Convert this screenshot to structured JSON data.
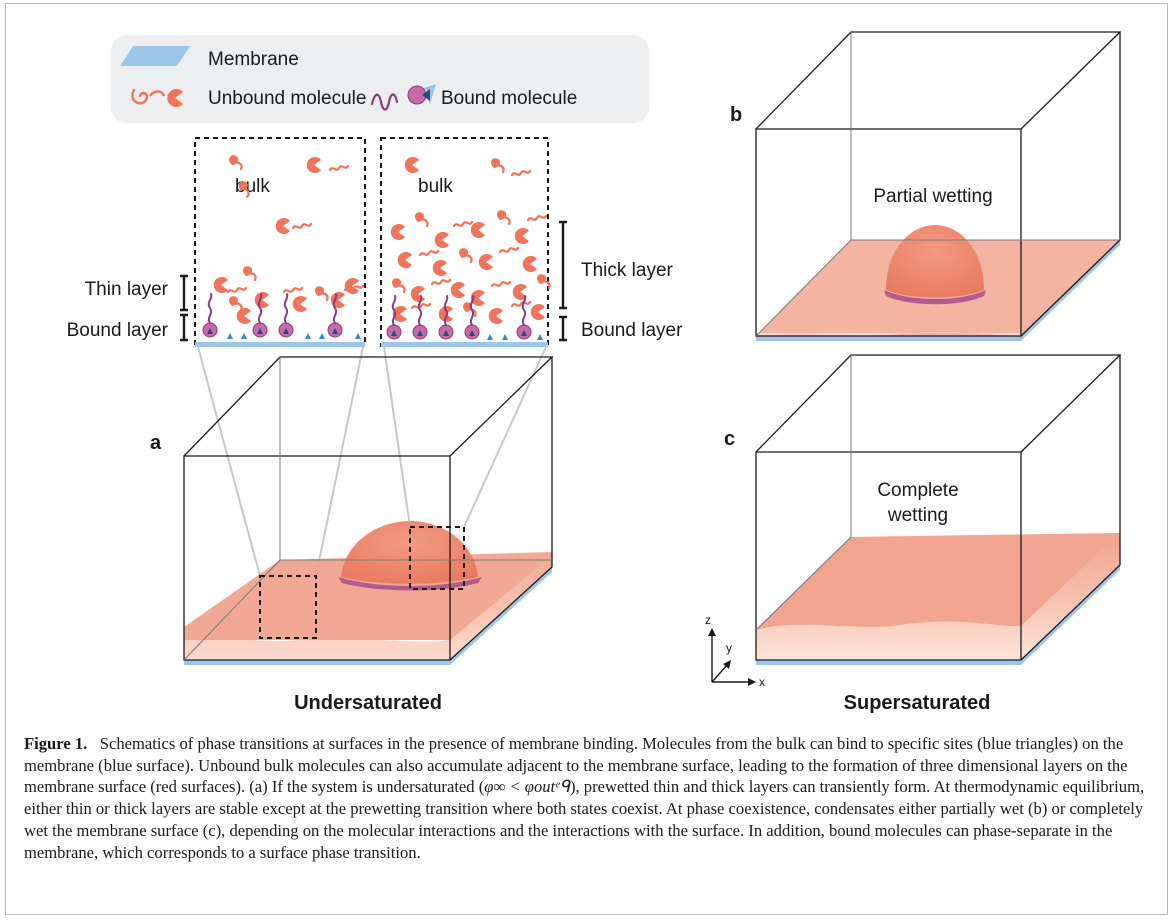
{
  "legend": {
    "membrane": "Membrane",
    "unbound": "Unbound molecule",
    "bound": "Bound molecule"
  },
  "inset_left": {
    "bulk": "bulk",
    "thin_layer": "Thin layer",
    "bound_layer": "Bound layer"
  },
  "inset_right": {
    "bulk": "bulk",
    "thick_layer": "Thick layer",
    "bound_layer": "Bound layer"
  },
  "panels": {
    "a": {
      "letter": "a",
      "title": "Undersaturated"
    },
    "b": {
      "letter": "b",
      "text": "Partial wetting"
    },
    "c": {
      "letter": "c",
      "text_line1": "Complete",
      "text_line2": "wetting",
      "title": "Supersaturated"
    }
  },
  "axes": {
    "z": "z",
    "y": "y",
    "x": "x"
  },
  "colors": {
    "condensate": "#f0a08a",
    "molecule": "#f0735a",
    "bound_molecule": "#a15a9a",
    "membrane": "#9cc6ea",
    "site": "#2f8ccc"
  },
  "caption": {
    "label": "Figure 1.",
    "part1": "Schematics of phase transitions at surfaces in the presence of membrane binding. Molecules from the bulk can bind to specific sites (blue triangles) on the membrane (blue surface). Unbound bulk molecules can also accumulate adjacent to the membrane surface, leading to the formation of three dimensional layers on the membrane surface (red surfaces). (a) If the system is undersaturated (",
    "math": "φ∞ < φoutᵉᑫ",
    "part2": "), prewetted thin and thick layers can transiently form. At thermodynamic equilibrium, either thin or thick layers are stable except at the prewetting transition where both states coexist. At phase coexistence, condensates either partially wet (b) or completely wet the membrane surface (c), depending on the molecular interactions and the interactions with the surface. In addition, bound molecules can phase-separate in the membrane, which corresponds to a surface phase transition."
  }
}
